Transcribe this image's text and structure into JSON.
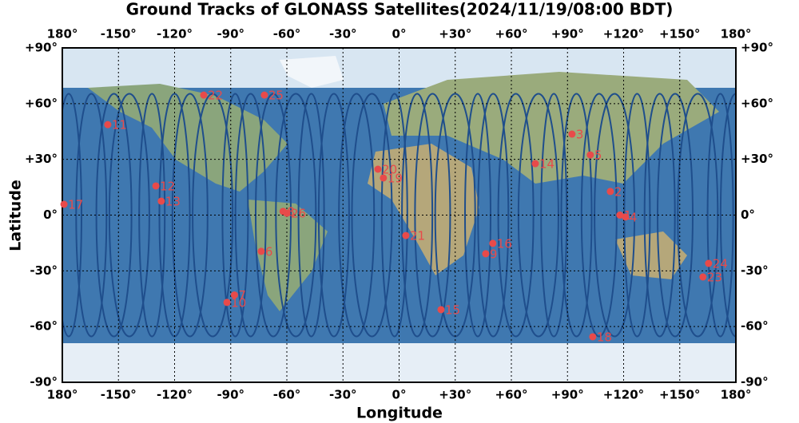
{
  "chart_data": {
    "type": "scatter",
    "title": "Ground Tracks of GLONASS Satellites(2024/11/19/08:00 BDT)",
    "x_label": "Longitude",
    "y_label": "Latitude",
    "xlim": [
      -180,
      180
    ],
    "ylim": [
      -90,
      90
    ],
    "xticks": [
      {
        "value": -180,
        "label": "180°"
      },
      {
        "value": -150,
        "label": "-150°"
      },
      {
        "value": -120,
        "label": "-120°"
      },
      {
        "value": -90,
        "label": "-90°"
      },
      {
        "value": -60,
        "label": "-60°"
      },
      {
        "value": -30,
        "label": "-30°"
      },
      {
        "value": 0,
        "label": "0°"
      },
      {
        "value": 30,
        "label": "+30°"
      },
      {
        "value": 60,
        "label": "+60°"
      },
      {
        "value": 90,
        "label": "+90°"
      },
      {
        "value": 120,
        "label": "+120°"
      },
      {
        "value": 150,
        "label": "+150°"
      },
      {
        "value": 180,
        "label": "180°"
      }
    ],
    "yticks": [
      {
        "value": -90,
        "label": "-90°"
      },
      {
        "value": -60,
        "label": "-60°"
      },
      {
        "value": -30,
        "label": "-30°"
      },
      {
        "value": 0,
        "label": "0°"
      },
      {
        "value": 30,
        "label": "+30°"
      },
      {
        "value": 60,
        "label": "+60°"
      },
      {
        "value": 90,
        "label": "+90°"
      }
    ],
    "grid": true,
    "color": "#e84a4a",
    "track_color": "#1f4e8c",
    "labels": [
      "1",
      "2",
      "3",
      "4",
      "5",
      "6",
      "7",
      "8",
      "9",
      "10",
      "11",
      "12",
      "13",
      "14",
      "15",
      "16",
      "17",
      "18",
      "19",
      "20",
      "21",
      "22",
      "23",
      "24",
      "25",
      "26"
    ],
    "x": [
      118,
      112.9,
      92.4,
      121,
      102.2,
      -73.7,
      -88,
      -62,
      46.3,
      -92,
      -155.7,
      -130,
      -127.1,
      72.8,
      22.4,
      50.1,
      -179.1,
      103.5,
      -8.4,
      -11.3,
      3.6,
      -104.4,
      162.4,
      165.4,
      -72,
      -60
    ],
    "y": [
      0,
      12.7,
      43.6,
      -1,
      32.4,
      -19.5,
      -43,
      2,
      -20.8,
      -47,
      48.7,
      15.7,
      7.5,
      27.7,
      -50.9,
      -15.2,
      5.8,
      -65.5,
      20,
      24.7,
      -11,
      64.6,
      -33.3,
      -26,
      64.6,
      1
    ]
  }
}
